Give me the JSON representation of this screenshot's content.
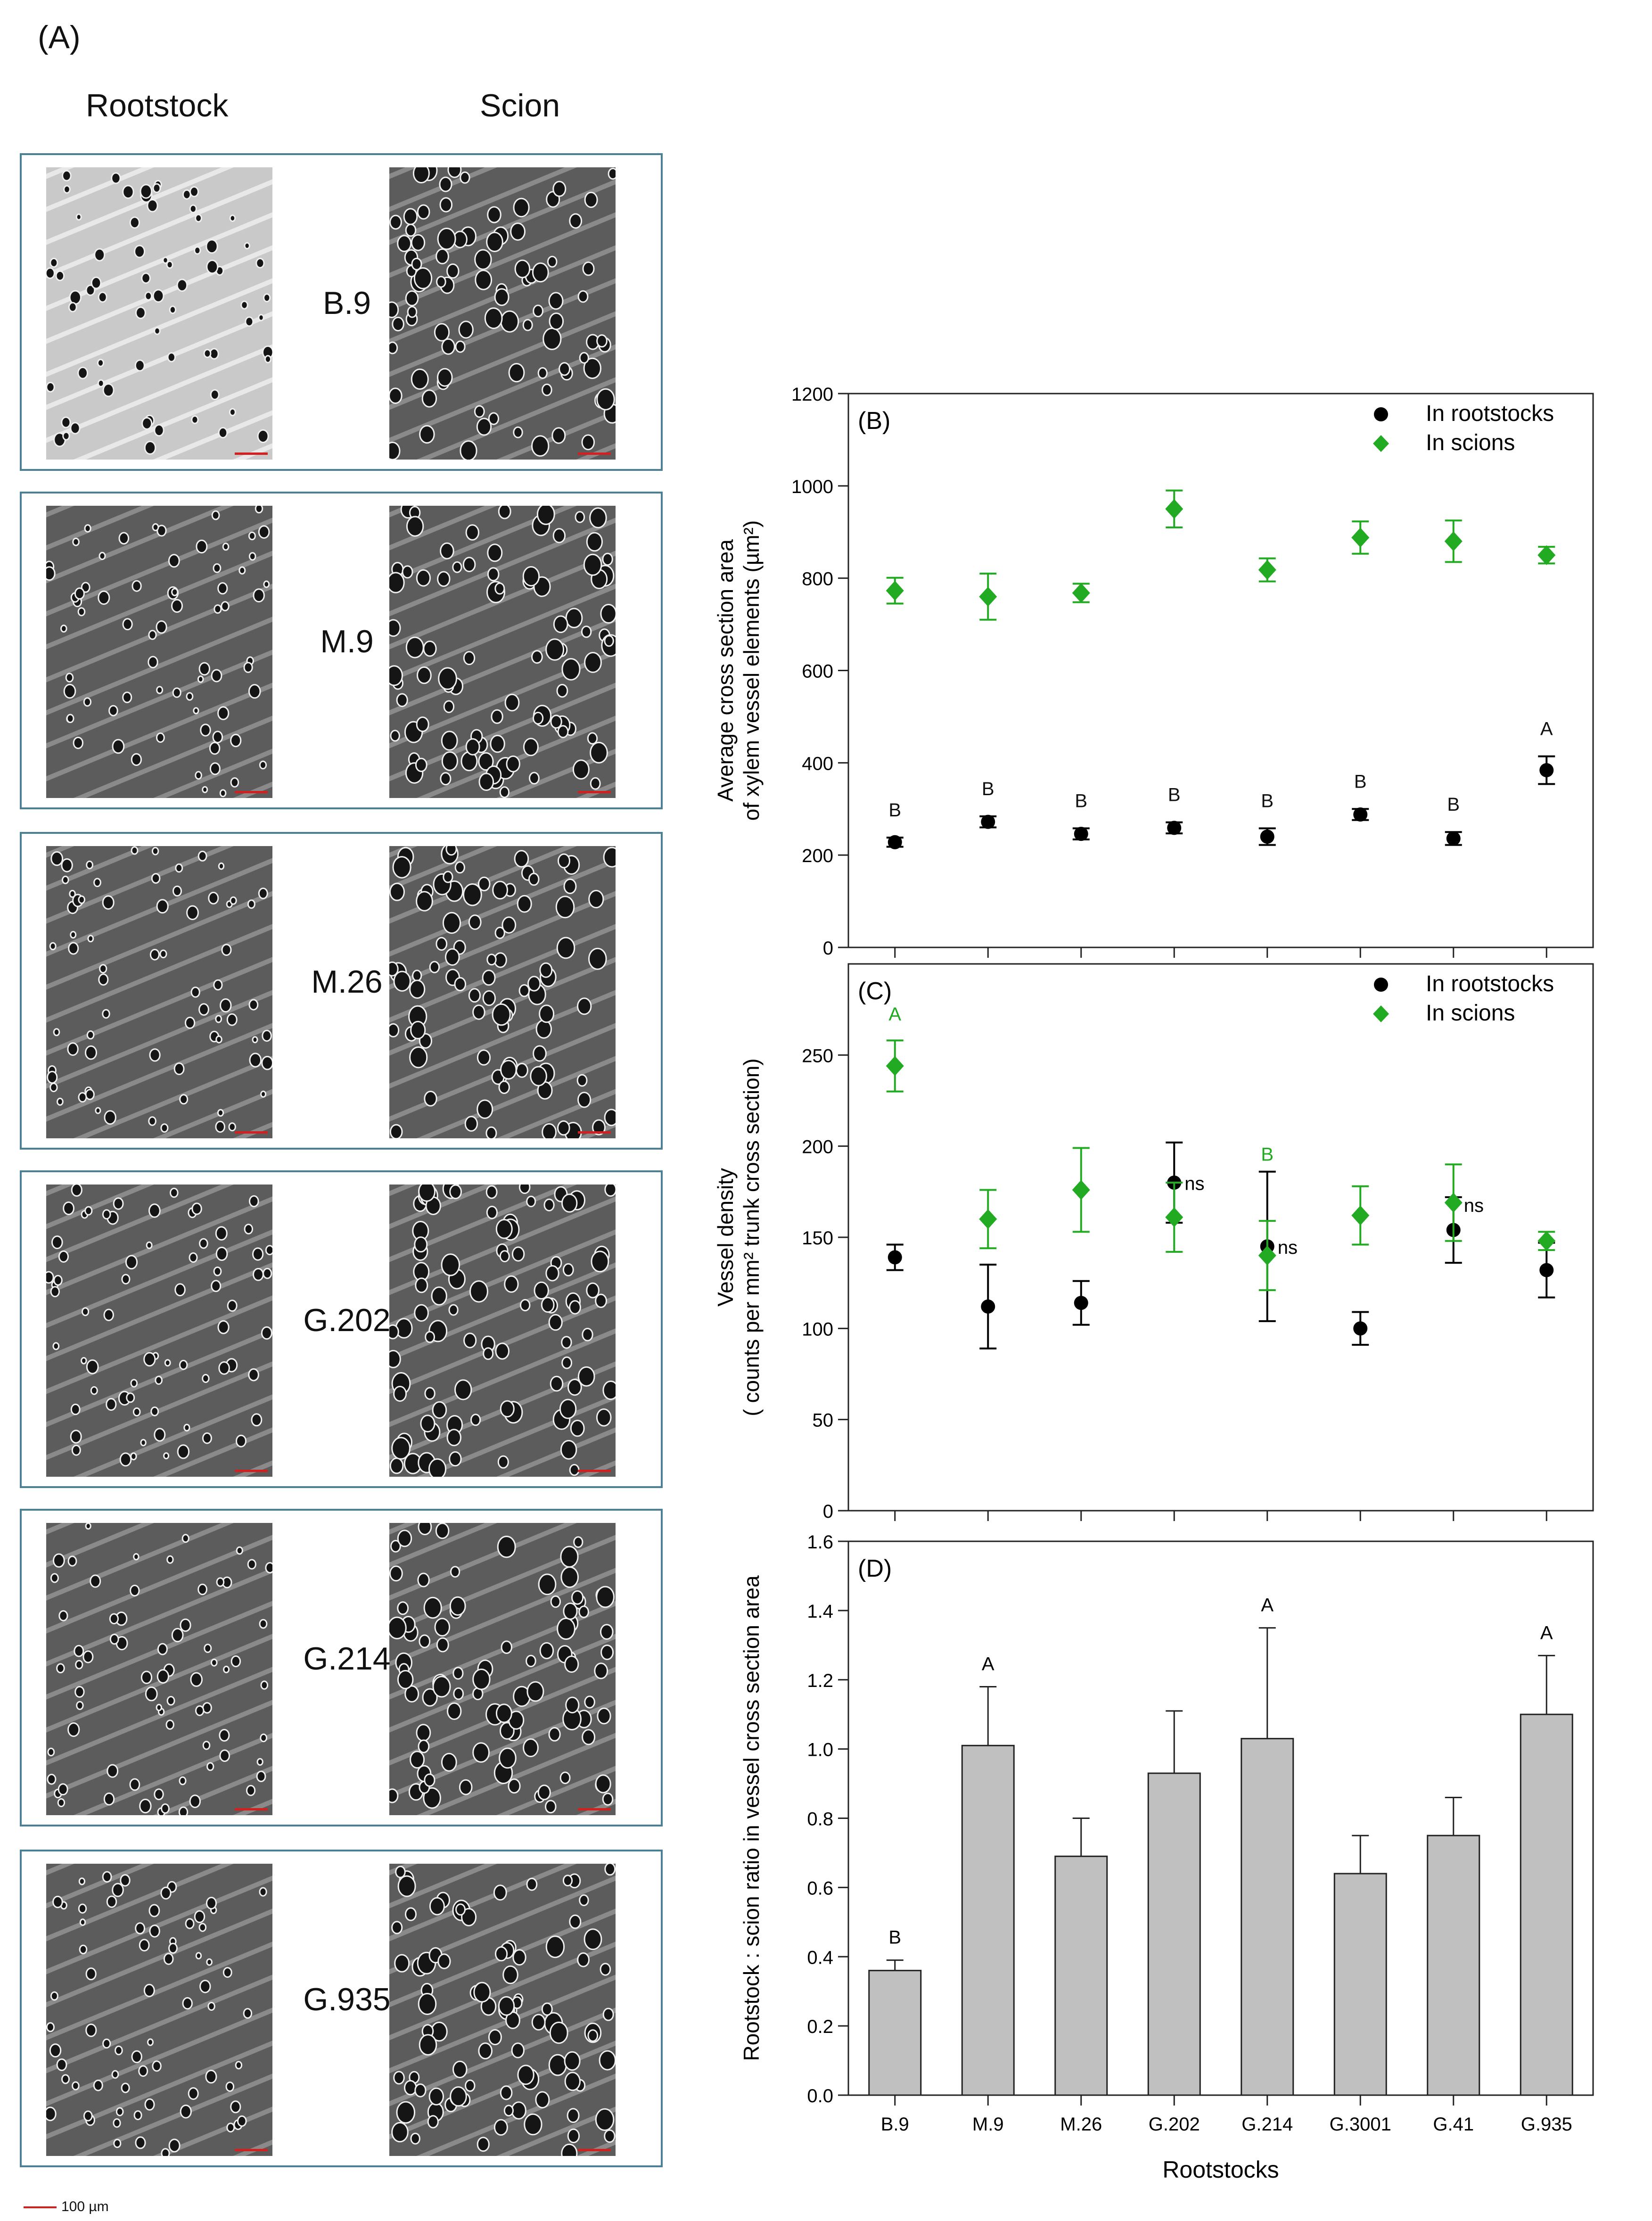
{
  "panel_a": {
    "label": "(A)",
    "col_rootstock": "Rootstock",
    "col_scion": "Scion",
    "rootstocks": [
      "B.9",
      "M.9",
      "M.26",
      "G.202",
      "G.214",
      "G.935"
    ],
    "scale_label": "100 µm",
    "scale_color": "#d02020",
    "frame_color": "#4a7f96"
  },
  "colors": {
    "rootstock_series": "#000000",
    "scion_series": "#22aa22",
    "bar_fill": "#c0c0c0"
  },
  "chart_data": [
    {
      "panel": "(B)",
      "type": "scatter",
      "ylabel_line1": "Average cross section area",
      "ylabel_line2": "of xylem vessel elements (µm²)",
      "ylim": [
        0,
        1200
      ],
      "yticks": [
        0,
        200,
        400,
        600,
        800,
        1000,
        1200
      ],
      "categories": [
        "B.9",
        "M.9",
        "M.26",
        "G.202",
        "G.214",
        "G.3001",
        "G.41",
        "G.935"
      ],
      "legend": [
        "In rootstocks",
        "In scions"
      ],
      "series": [
        {
          "name": "In rootstocks",
          "marker": "circle",
          "color": "#000000",
          "values": [
            228,
            272,
            246,
            259,
            240,
            288,
            236,
            384
          ],
          "errors": [
            10,
            12,
            12,
            12,
            18,
            12,
            14,
            30
          ],
          "letters": [
            "B",
            "B",
            "B",
            "B",
            "B",
            "B",
            "B",
            "A"
          ]
        },
        {
          "name": "In scions",
          "marker": "diamond",
          "color": "#22aa22",
          "values": [
            773,
            760,
            768,
            950,
            818,
            888,
            880,
            850
          ],
          "errors": [
            28,
            50,
            20,
            40,
            25,
            35,
            45,
            18
          ],
          "letters": [
            "",
            "",
            "",
            "",
            "",
            "",
            "",
            ""
          ]
        }
      ]
    },
    {
      "panel": "(C)",
      "type": "scatter",
      "ylabel_line1": "Vessel density",
      "ylabel_line2": "( counts per mm² trunk cross section)",
      "ylim": [
        0,
        300
      ],
      "yticks": [
        0,
        50,
        100,
        150,
        200,
        250
      ],
      "categories": [
        "B.9",
        "M.9",
        "M.26",
        "G.202",
        "G.214",
        "G.3001",
        "G.41",
        "G.935"
      ],
      "legend": [
        "In rootstocks",
        "In scions"
      ],
      "series": [
        {
          "name": "In rootstocks",
          "marker": "circle",
          "color": "#000000",
          "values": [
            139,
            112,
            114,
            180,
            145,
            100,
            154,
            132
          ],
          "errors": [
            7,
            23,
            12,
            22,
            41,
            9,
            18,
            15
          ]
        },
        {
          "name": "In scions",
          "marker": "diamond",
          "color": "#22aa22",
          "values": [
            244,
            160,
            176,
            161,
            140,
            162,
            169,
            148
          ],
          "errors": [
            14,
            16,
            23,
            19,
            19,
            16,
            21,
            5
          ]
        }
      ],
      "annotations": [
        {
          "category": "B.9",
          "text": "A",
          "color": "#22aa22",
          "y": 269
        },
        {
          "category": "G.214",
          "text": "B",
          "color": "#22aa22",
          "y": 192
        },
        {
          "category": "G.202",
          "text": "ns",
          "color": "#000000",
          "y": 176
        },
        {
          "category": "G.214",
          "text": "ns",
          "color": "#000000",
          "y": 141
        },
        {
          "category": "G.41",
          "text": "ns",
          "color": "#000000",
          "y": 164
        }
      ]
    },
    {
      "panel": "(D)",
      "type": "bar",
      "ylabel": "Rootstock : scion ratio in vessel cross section area",
      "xlabel": "Rootstocks",
      "ylim": [
        0,
        1.6
      ],
      "yticks": [
        "0.0",
        "0.2",
        "0.4",
        "0.6",
        "0.8",
        "1.0",
        "1.2",
        "1.4",
        "1.6"
      ],
      "categories": [
        "B.9",
        "M.9",
        "M.26",
        "G.202",
        "G.214",
        "G.3001",
        "G.41",
        "G.935"
      ],
      "values": [
        0.36,
        1.01,
        0.69,
        0.93,
        1.03,
        0.64,
        0.75,
        1.1
      ],
      "errors": [
        0.03,
        0.17,
        0.11,
        0.18,
        0.32,
        0.11,
        0.11,
        0.17
      ],
      "letters": [
        "B",
        "A",
        "",
        "",
        "A",
        "",
        "",
        "A"
      ]
    }
  ]
}
